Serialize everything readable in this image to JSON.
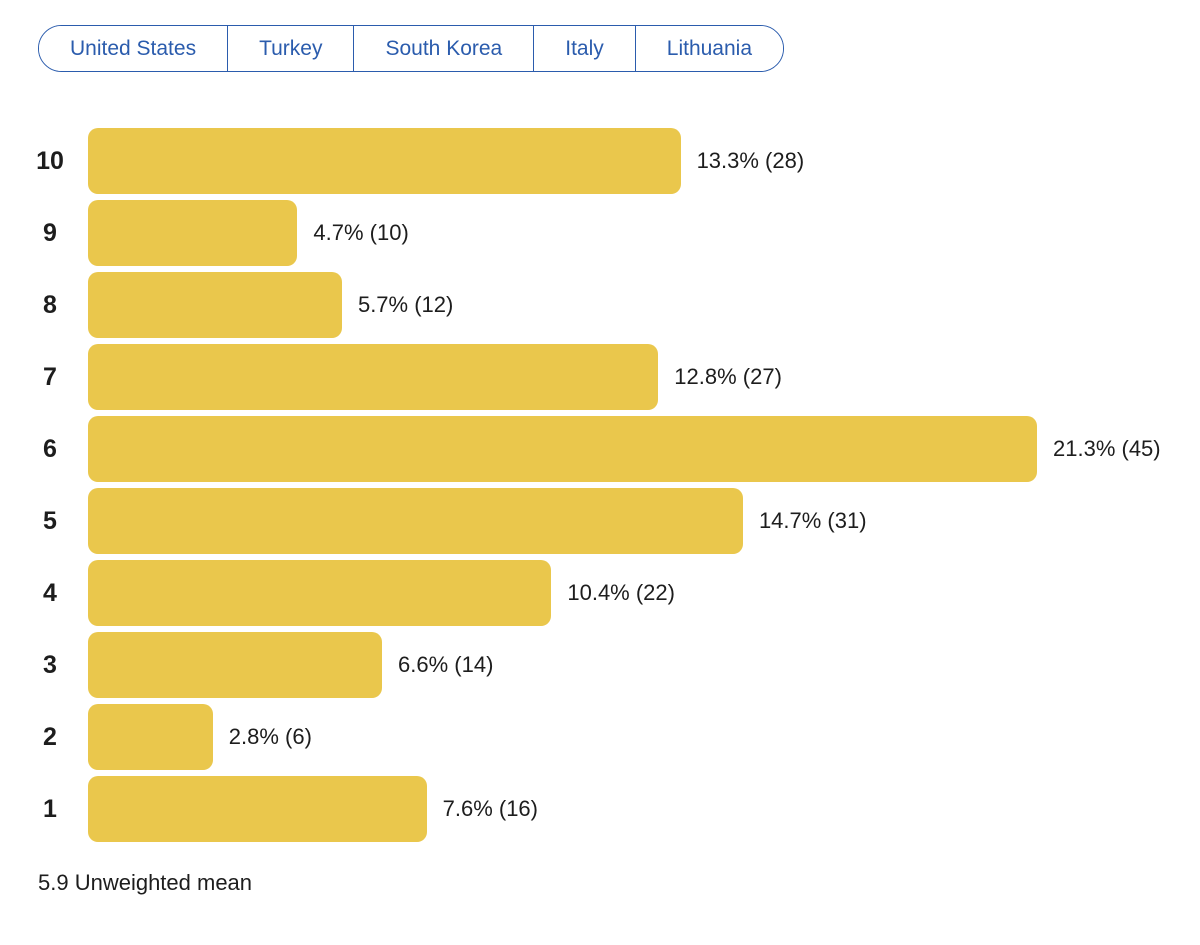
{
  "tabs": {
    "items": [
      "United States",
      "Turkey",
      "South Korea",
      "Italy",
      "Lithuania"
    ]
  },
  "chart_data": {
    "type": "bar",
    "orientation": "horizontal",
    "categories": [
      "10",
      "9",
      "8",
      "7",
      "6",
      "5",
      "4",
      "3",
      "2",
      "1"
    ],
    "values": [
      13.3,
      4.7,
      5.7,
      12.8,
      21.3,
      14.7,
      10.4,
      6.6,
      2.8,
      7.6
    ],
    "counts": [
      28,
      10,
      12,
      27,
      45,
      31,
      22,
      14,
      6,
      16
    ],
    "value_labels": [
      "13.3% (28)",
      "4.7% (10)",
      "5.7% (12)",
      "12.8% (27)",
      "21.3% (45)",
      "14.7% (31)",
      "10.4% (22)",
      "6.6% (14)",
      "2.8% (6)",
      "7.6% (16)"
    ],
    "footnote": "5.9 Unweighted mean",
    "xlim": [
      0,
      21.3
    ],
    "grid": false,
    "legend": null,
    "bar_color": "#eac74c",
    "accent_color": "#2b5cad",
    "text_color": "#1d1d1d"
  }
}
